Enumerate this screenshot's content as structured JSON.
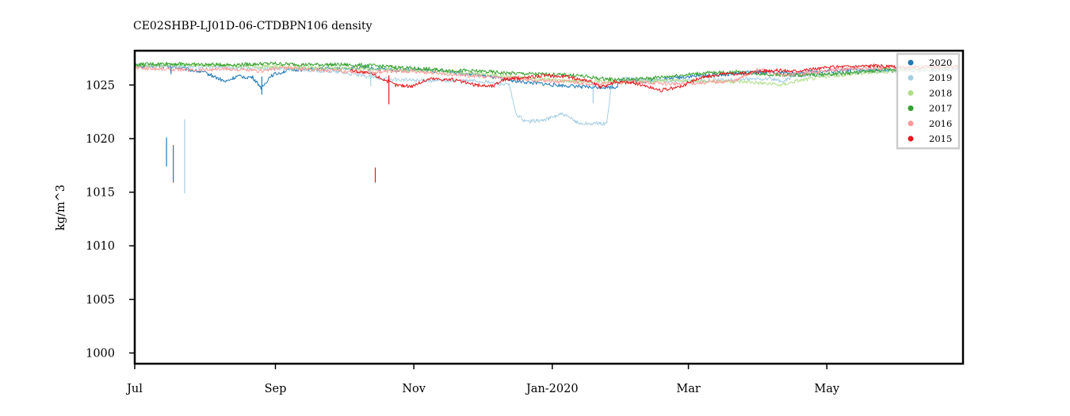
{
  "chart_data": {
    "type": "line",
    "title": "CE02SHBP-LJ01D-06-CTDBPN106 density",
    "xlabel": "",
    "ylabel": "kg/m^3",
    "ylim": [
      999,
      1028.2
    ],
    "xlim": [
      0,
      365
    ],
    "x_unit": "days from Jul 1",
    "yticks": [
      1000,
      1005,
      1010,
      1015,
      1020,
      1025
    ],
    "xticks": [
      {
        "label": "Jul",
        "x": 0
      },
      {
        "label": "Sep",
        "x": 62
      },
      {
        "label": "Nov",
        "x": 123
      },
      {
        "label": "Jan-2020",
        "x": 184
      },
      {
        "label": "Mar",
        "x": 244
      },
      {
        "label": "May",
        "x": 305
      }
    ],
    "grid": false,
    "legend_position": "top-right",
    "series": [
      {
        "name": "2020",
        "color": "#1f78b4",
        "points": [
          [
            0,
            1026.7
          ],
          [
            10,
            1026.8
          ],
          [
            20,
            1026.6
          ],
          [
            30,
            1026.2
          ],
          [
            34,
            1025.9
          ],
          [
            40,
            1025.3
          ],
          [
            45,
            1025.8
          ],
          [
            52,
            1025.7
          ],
          [
            56,
            1024.7
          ],
          [
            60,
            1025.9
          ],
          [
            68,
            1026.4
          ],
          [
            80,
            1026.5
          ],
          [
            100,
            1026.6
          ],
          [
            115,
            1026.4
          ],
          [
            125,
            1026.4
          ],
          [
            135,
            1026.3
          ],
          [
            150,
            1026.0
          ],
          [
            170,
            1025.3
          ],
          [
            185,
            1025.0
          ],
          [
            200,
            1024.8
          ],
          [
            212,
            1024.8
          ],
          [
            215,
            1025.5
          ],
          [
            225,
            1025.3
          ],
          [
            235,
            1025.6
          ],
          [
            245,
            1025.8
          ],
          [
            260,
            1026.0
          ],
          [
            275,
            1026.2
          ],
          [
            290,
            1026.1
          ],
          [
            305,
            1026.3
          ],
          [
            320,
            1026.4
          ],
          [
            335,
            1026.3
          ],
          [
            350,
            1026.4
          ],
          [
            363,
            1026.5
          ]
        ]
      },
      {
        "name": "2019",
        "color": "#a6cee3",
        "points": [
          [
            0,
            1026.8
          ],
          [
            15,
            1026.8
          ],
          [
            30,
            1026.7
          ],
          [
            50,
            1026.6
          ],
          [
            70,
            1026.5
          ],
          [
            90,
            1026.2
          ],
          [
            105,
            1025.7
          ],
          [
            115,
            1025.5
          ],
          [
            130,
            1025.4
          ],
          [
            150,
            1025.4
          ],
          [
            165,
            1025.0
          ],
          [
            168,
            1022.3
          ],
          [
            172,
            1021.6
          ],
          [
            180,
            1021.7
          ],
          [
            188,
            1022.3
          ],
          [
            192,
            1021.9
          ],
          [
            196,
            1021.4
          ],
          [
            208,
            1021.4
          ],
          [
            210,
            1025.0
          ],
          [
            215,
            1025.6
          ],
          [
            225,
            1025.5
          ],
          [
            235,
            1025.4
          ],
          [
            250,
            1025.4
          ],
          [
            265,
            1025.5
          ],
          [
            280,
            1025.6
          ],
          [
            285,
            1025.3
          ],
          [
            290,
            1025.8
          ],
          [
            305,
            1026.0
          ],
          [
            320,
            1026.2
          ],
          [
            335,
            1026.4
          ],
          [
            350,
            1026.6
          ],
          [
            363,
            1026.7
          ]
        ]
      },
      {
        "name": "2018",
        "color": "#b2df8a",
        "points": [
          [
            0,
            1026.8
          ],
          [
            20,
            1026.9
          ],
          [
            40,
            1026.8
          ],
          [
            60,
            1026.7
          ],
          [
            80,
            1026.6
          ],
          [
            100,
            1026.5
          ],
          [
            120,
            1026.4
          ],
          [
            140,
            1026.2
          ],
          [
            160,
            1025.9
          ],
          [
            175,
            1025.6
          ],
          [
            190,
            1025.4
          ],
          [
            210,
            1025.3
          ],
          [
            230,
            1025.4
          ],
          [
            250,
            1025.4
          ],
          [
            270,
            1025.3
          ],
          [
            285,
            1025.0
          ],
          [
            292,
            1025.4
          ],
          [
            305,
            1025.8
          ],
          [
            320,
            1026.1
          ],
          [
            335,
            1026.3
          ],
          [
            350,
            1026.5
          ],
          [
            363,
            1026.6
          ]
        ]
      },
      {
        "name": "2017",
        "color": "#33a02c",
        "points": [
          [
            0,
            1026.9
          ],
          [
            15,
            1027.0
          ],
          [
            30,
            1026.9
          ],
          [
            45,
            1026.9
          ],
          [
            60,
            1027.0
          ],
          [
            75,
            1026.9
          ],
          [
            90,
            1026.9
          ],
          [
            105,
            1026.8
          ],
          [
            120,
            1026.6
          ],
          [
            135,
            1026.4
          ],
          [
            150,
            1026.3
          ],
          [
            165,
            1026.1
          ],
          [
            180,
            1026.0
          ],
          [
            195,
            1025.9
          ],
          [
            205,
            1025.6
          ],
          [
            215,
            1025.5
          ],
          [
            225,
            1025.6
          ],
          [
            235,
            1025.8
          ],
          [
            250,
            1026.1
          ],
          [
            265,
            1026.2
          ],
          [
            280,
            1026.0
          ],
          [
            290,
            1025.9
          ],
          [
            305,
            1026.0
          ],
          [
            320,
            1026.2
          ],
          [
            335,
            1026.5
          ],
          [
            350,
            1026.6
          ],
          [
            363,
            1026.7
          ]
        ]
      },
      {
        "name": "2016",
        "color": "#fb9a99",
        "points": [
          [
            0,
            1026.6
          ],
          [
            12,
            1026.5
          ],
          [
            25,
            1026.4
          ],
          [
            40,
            1026.5
          ],
          [
            55,
            1026.3
          ],
          [
            65,
            1026.6
          ],
          [
            75,
            1026.5
          ],
          [
            90,
            1026.3
          ],
          [
            105,
            1026.2
          ],
          [
            120,
            1026.3
          ],
          [
            140,
            1026.0
          ],
          [
            160,
            1025.7
          ],
          [
            175,
            1025.5
          ],
          [
            190,
            1025.3
          ],
          [
            205,
            1025.1
          ],
          [
            220,
            1025.3
          ],
          [
            235,
            1025.1
          ],
          [
            250,
            1025.2
          ],
          [
            265,
            1025.4
          ],
          [
            275,
            1026.5
          ],
          [
            285,
            1025.9
          ],
          [
            300,
            1026.2
          ],
          [
            315,
            1026.5
          ],
          [
            330,
            1026.6
          ],
          [
            345,
            1026.7
          ],
          [
            363,
            1026.7
          ]
        ]
      },
      {
        "name": "2015",
        "color": "#e31a1c",
        "points": [
          [
            95,
            1026.4
          ],
          [
            105,
            1026.0
          ],
          [
            110,
            1025.5
          ],
          [
            115,
            1025.0
          ],
          [
            122,
            1024.9
          ],
          [
            130,
            1025.6
          ],
          [
            140,
            1025.5
          ],
          [
            150,
            1025.0
          ],
          [
            158,
            1024.9
          ],
          [
            162,
            1025.5
          ],
          [
            172,
            1025.7
          ],
          [
            180,
            1025.9
          ],
          [
            190,
            1025.8
          ],
          [
            200,
            1025.4
          ],
          [
            205,
            1024.8
          ],
          [
            212,
            1025.3
          ],
          [
            220,
            1025.2
          ],
          [
            225,
            1024.9
          ],
          [
            232,
            1024.5
          ],
          [
            240,
            1024.8
          ],
          [
            248,
            1025.6
          ],
          [
            258,
            1026.0
          ],
          [
            268,
            1026.1
          ],
          [
            280,
            1026.4
          ],
          [
            290,
            1026.3
          ],
          [
            300,
            1026.5
          ],
          [
            310,
            1026.7
          ],
          [
            325,
            1026.8
          ],
          [
            340,
            1026.6
          ],
          [
            355,
            1026.7
          ],
          [
            363,
            1026.7
          ]
        ]
      }
    ],
    "spikes": [
      {
        "series": "2020",
        "x": 14,
        "y_top": 1020.1,
        "y_bottom": 1017.4
      },
      {
        "series": "2020",
        "x": 17,
        "y_top": 1019.4,
        "y_bottom": 1015.9
      },
      {
        "series": "2019",
        "x": 22,
        "y_top": 1021.8,
        "y_bottom": 1014.9
      },
      {
        "series": "2020",
        "x": 16,
        "y_top": 1026.6,
        "y_bottom": 1026.0
      },
      {
        "series": "2015",
        "x": 106,
        "y_top": 1017.3,
        "y_bottom": 1015.9
      },
      {
        "series": "2015",
        "x": 112,
        "y_top": 1025.9,
        "y_bottom": 1023.2
      },
      {
        "series": "2020",
        "x": 56,
        "y_top": 1025.8,
        "y_bottom": 1024.1
      },
      {
        "series": "2019",
        "x": 104,
        "y_top": 1026.3,
        "y_bottom": 1024.9
      },
      {
        "series": "2019",
        "x": 202,
        "y_top": 1025.3,
        "y_bottom": 1023.3
      }
    ]
  }
}
